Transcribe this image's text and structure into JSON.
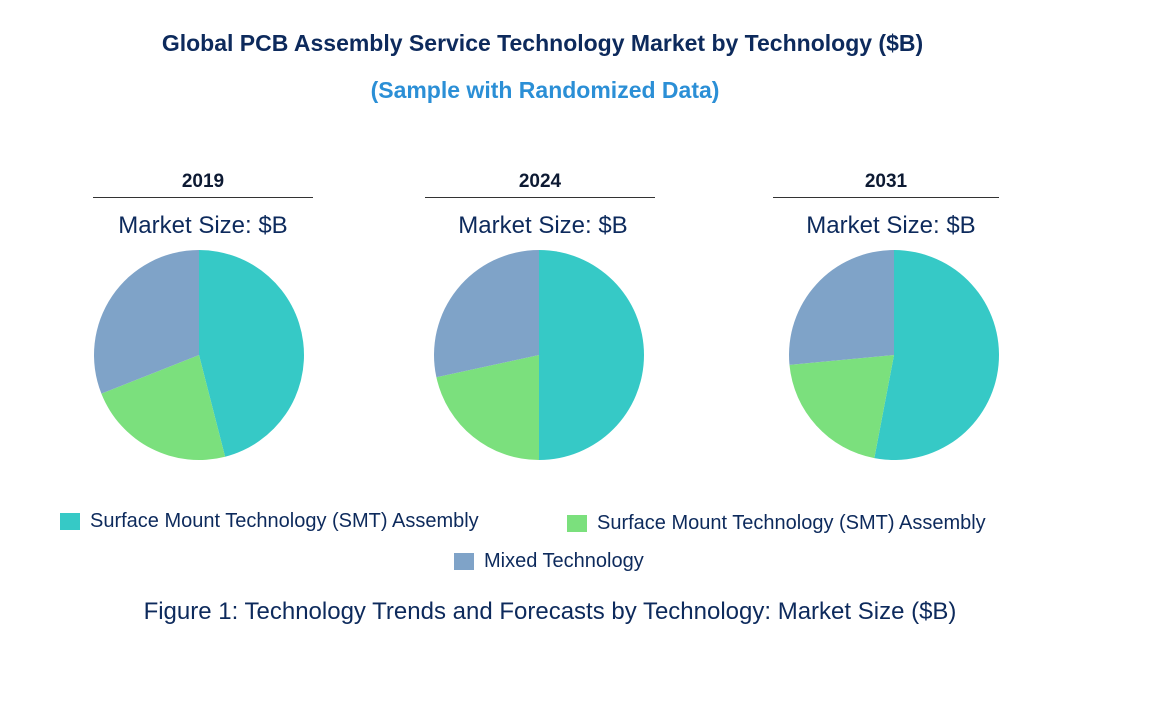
{
  "chart_data": {
    "type": "pie",
    "title": "Global PCB Assembly Service Technology Market by Technology ($B)",
    "subtitle": "(Sample with Randomized Data)",
    "caption": "Figure 1: Technology Trends and Forecasts by Technology: Market Size ($B)",
    "series_names": [
      "Surface Mount Technology (SMT) Assembly",
      "Surface Mount Technology (SMT) Assembly",
      "Mixed Technology"
    ],
    "colors": [
      "#36c9c6",
      "#7be07d",
      "#7fa3c8"
    ],
    "pies": [
      {
        "year": "2019",
        "label": "Market Size: $B",
        "values": [
          46,
          23,
          31
        ]
      },
      {
        "year": "2024",
        "label": "Market Size: $B",
        "values": [
          50,
          21.6,
          28.4
        ]
      },
      {
        "year": "2031",
        "label": "Market Size: $B",
        "values": [
          53,
          20.5,
          26.5
        ]
      }
    ],
    "legend_placement": "bottom"
  }
}
